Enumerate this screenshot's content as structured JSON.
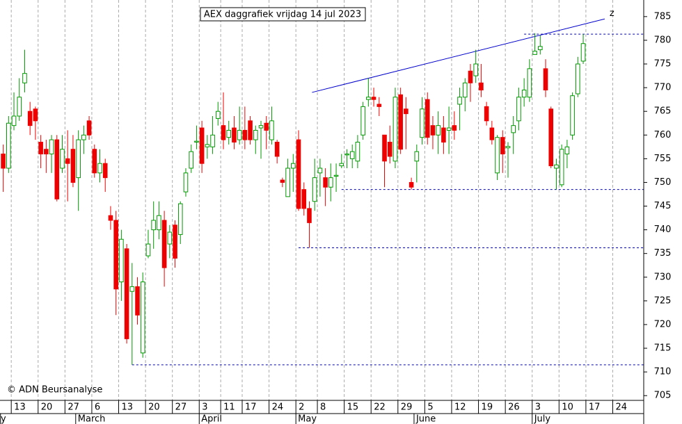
{
  "chart_data": {
    "type": "candlestick",
    "title": "AEX daggrafiek vrijdag 14 jul 2023",
    "credit": "© ADN Beursanalyse",
    "categories": [
      null,
      null,
      "13",
      null,
      null,
      null,
      null,
      "20",
      null,
      null,
      null,
      null,
      "27",
      null,
      null,
      null,
      null,
      "6",
      null,
      null,
      null,
      null,
      "13",
      null,
      null,
      null,
      null,
      "20",
      null,
      null,
      null,
      null,
      "27",
      null,
      null,
      null,
      null,
      "3",
      null,
      null,
      null,
      "11",
      null,
      null,
      null,
      "17",
      null,
      null,
      null,
      null,
      "24",
      null,
      null,
      null,
      null,
      "2",
      null,
      null,
      null,
      "8",
      null,
      null,
      null,
      null,
      "15",
      null,
      null,
      null,
      null,
      "22",
      null,
      null,
      null,
      null,
      "29",
      null,
      null,
      null,
      null,
      "5",
      null,
      null,
      null,
      null,
      "12",
      null,
      null,
      null,
      null,
      "19",
      null,
      null,
      null,
      null,
      "26",
      null,
      null,
      null,
      null,
      "3",
      null,
      null,
      null,
      null,
      "10",
      null,
      null,
      null,
      null,
      "17",
      null,
      null,
      null,
      null,
      "24",
      null,
      null,
      null,
      null
    ],
    "month_labels": [
      "y",
      null,
      null,
      null,
      null,
      null,
      null,
      null,
      null,
      null,
      null,
      null,
      null,
      null,
      "March",
      null,
      null,
      null,
      null,
      null,
      null,
      null,
      null,
      null,
      null,
      null,
      null,
      null,
      null,
      null,
      null,
      null,
      null,
      null,
      null,
      null,
      null,
      "April",
      null,
      null,
      null,
      null,
      null,
      null,
      null,
      null,
      null,
      null,
      null,
      null,
      null,
      null,
      null,
      null,
      null,
      "May",
      null,
      null,
      null,
      null,
      null,
      null,
      null,
      null,
      null,
      null,
      null,
      null,
      null,
      null,
      null,
      null,
      null,
      null,
      null,
      null,
      null,
      "June",
      null,
      null,
      null,
      null,
      null,
      null,
      null,
      null,
      null,
      null,
      null,
      null,
      null,
      null,
      null,
      null,
      null,
      null,
      null,
      null,
      null,
      "July",
      null,
      null,
      null,
      null,
      null,
      null,
      null,
      null,
      null,
      null,
      null,
      null,
      null,
      null,
      null,
      null,
      null,
      null,
      null
    ],
    "open": [
      756,
      753,
      762,
      764,
      771,
      765,
      765.5,
      758.5,
      757,
      756,
      759,
      753,
      755,
      757,
      751,
      759,
      763,
      757,
      752,
      754,
      743,
      742,
      729,
      736,
      727,
      728,
      714,
      734.5,
      740,
      740,
      742,
      737,
      741,
      739,
      748,
      753,
      758.5,
      761.5,
      757.5,
      757.5,
      763.5,
      762,
      759.5,
      761.5,
      759,
      761,
      763,
      759,
      761.5,
      762.5,
      759,
      758.5,
      750.5,
      747,
      753,
      759,
      748.5,
      744.5,
      746,
      752,
      751,
      749,
      751.3,
      753.5,
      755.8,
      755,
      754.5,
      760,
      767.5,
      768,
      766.5,
      760,
      758.5,
      754.5,
      768.5,
      765.5,
      750,
      754.5,
      759.5,
      767.5,
      762,
      760,
      761.5,
      761,
      762,
      766.5,
      768,
      773.5,
      772.5,
      771,
      766,
      761.5,
      752,
      759.5,
      757.3,
      760.5,
      763,
      768,
      768,
      777,
      778,
      774,
      765.5,
      753,
      749.5,
      756,
      760,
      768.7,
      775.6,
      null,
      null,
      null,
      null,
      null,
      null,
      null,
      null,
      null,
      null
    ],
    "high": [
      758,
      764,
      769,
      772,
      778,
      767,
      766,
      760,
      759,
      760,
      760,
      760,
      761,
      760,
      761,
      762,
      764,
      758,
      757,
      755,
      745,
      744,
      740,
      737,
      733,
      730,
      731,
      740,
      746,
      746,
      744,
      741,
      742,
      746,
      753,
      758,
      762,
      763,
      760,
      764,
      767,
      769,
      763,
      764,
      766,
      766,
      764,
      762,
      763,
      764,
      766,
      759,
      751,
      755,
      756,
      761,
      750,
      746,
      755,
      755,
      753,
      754,
      754,
      756,
      757,
      758,
      760,
      767,
      772,
      770,
      768,
      760,
      762,
      770,
      770,
      768,
      751,
      758,
      768,
      769,
      764,
      765,
      764,
      766,
      765,
      770,
      772,
      775,
      778,
      775,
      767,
      763,
      760,
      761,
      758.5,
      764,
      770,
      772,
      776,
      781.5,
      781,
      776,
      766,
      755,
      758,
      759,
      769,
      776.5,
      781.3,
      null,
      null,
      null,
      null,
      null,
      null,
      null,
      null,
      null,
      null
    ],
    "low": [
      748,
      752,
      761,
      763,
      769,
      760,
      759,
      753,
      752,
      752,
      746,
      752,
      746,
      749,
      744,
      756,
      759,
      751,
      750,
      748,
      740,
      722,
      725,
      716,
      711.5,
      720,
      713,
      734,
      736,
      738,
      728,
      734,
      732,
      737,
      747,
      752,
      757,
      752,
      755,
      756,
      762,
      757,
      758,
      757,
      758,
      757,
      758,
      756,
      755,
      757,
      758,
      754,
      749,
      747,
      748,
      744,
      743,
      736.2,
      744,
      747,
      745,
      746,
      748,
      753,
      753,
      753,
      753,
      759,
      766,
      766,
      764,
      749,
      754,
      753,
      756,
      757,
      748.5,
      750,
      758,
      758,
      757,
      756,
      756,
      756,
      759,
      761,
      765,
      767,
      771,
      768,
      762,
      758,
      750.5,
      752,
      751,
      756,
      761,
      766,
      767,
      777,
      777,
      768,
      753,
      748.5,
      749,
      753,
      759,
      768,
      775,
      null,
      null,
      null,
      null,
      null,
      null,
      null,
      null,
      null,
      null
    ],
    "close": [
      753,
      762.5,
      764,
      768,
      773,
      762,
      763,
      756,
      756,
      759,
      746.5,
      757,
      754,
      750,
      759,
      760,
      760,
      752,
      754,
      751,
      742,
      727.5,
      738,
      717,
      728,
      722,
      729,
      737,
      742,
      743,
      732,
      739.5,
      734,
      745.5,
      752,
      756.5,
      758.7,
      754,
      758,
      760,
      765,
      759,
      761,
      758.5,
      761,
      759,
      759,
      761,
      762,
      761,
      763,
      755.5,
      750,
      753,
      754,
      744.5,
      744.5,
      741.5,
      751,
      753,
      749,
      751,
      751.5,
      754,
      756,
      756.5,
      758.5,
      766,
      768,
      767.5,
      766,
      754.5,
      755.5,
      768,
      757,
      764.5,
      749,
      756.5,
      765.5,
      759.5,
      760,
      762,
      758.5,
      761.5,
      761,
      768,
      771,
      771,
      775,
      769.5,
      763,
      759,
      759.5,
      756,
      757.6,
      762,
      768,
      769.5,
      774,
      777.7,
      778.7,
      769.5,
      753.5,
      753.7,
      757,
      757.5,
      768.3,
      775,
      779.3,
      null,
      null,
      null,
      null,
      null,
      null,
      null,
      null,
      null,
      null
    ],
    "up_color": "#009900",
    "down_color": "#ee0000",
    "ylim": [
      704,
      788.5
    ],
    "yticks": [
      705,
      710,
      715,
      720,
      725,
      730,
      735,
      740,
      745,
      750,
      755,
      760,
      765,
      770,
      775,
      780,
      785
    ],
    "grid": true,
    "levels": [
      {
        "value": 781.3,
        "start": 97
      },
      {
        "value": 748.5,
        "start": 63
      },
      {
        "value": 736.2,
        "start": 55
      },
      {
        "value": 711.5,
        "start": 24
      }
    ],
    "level_color": "#0000aa",
    "trendline": {
      "label": "z",
      "from": [
        57.5,
        769
      ],
      "to": [
        112,
        784.5
      ],
      "color": "#0000cc"
    }
  }
}
